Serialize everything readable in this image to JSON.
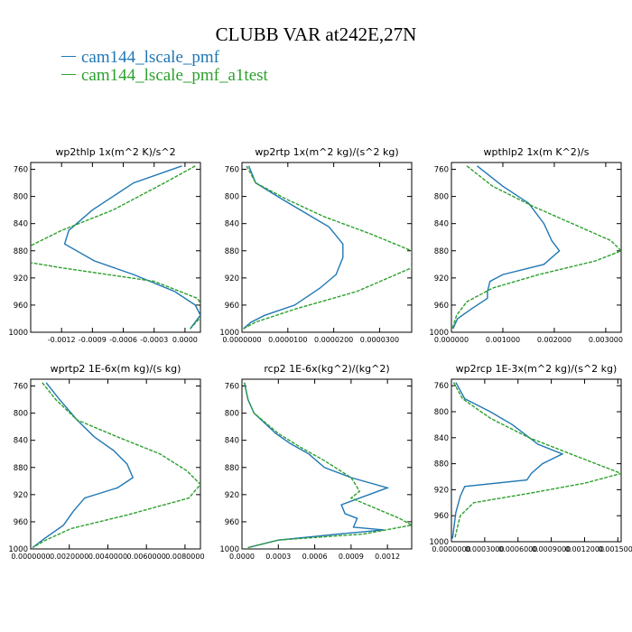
{
  "title": "CLUBB VAR at242E,27N",
  "legend": [
    {
      "label": "cam144_lscale_pmf",
      "color": "#1f77b4"
    },
    {
      "label": "cam144_lscale_pmf_a1test",
      "color": "#2ca02c"
    }
  ],
  "chart_data": [
    {
      "type": "line",
      "title": "wp2thlp  1x(m^2 K)/s^2",
      "xlim": [
        -0.0015,
        0.00015
      ],
      "ylim": [
        1000,
        750
      ],
      "xticks": [
        -0.0012,
        -0.0009,
        -0.0006,
        -0.0003,
        0.0
      ],
      "xticklabels": [
        "-0.0012",
        "-0.0009",
        "-0.0006",
        "-0.0003",
        "0.0000"
      ],
      "yticks": [
        760,
        800,
        840,
        880,
        920,
        960,
        1000
      ],
      "series": [
        {
          "color": "#1f77b4",
          "dashed": false,
          "x": [
            -3e-05,
            -0.0005,
            -0.0009,
            -0.00113,
            -0.00117,
            -0.00088,
            -0.0005,
            -0.0001,
            0.0001,
            0.00015,
            5e-05
          ],
          "y": [
            755,
            780,
            820,
            850,
            870,
            895,
            915,
            940,
            960,
            975,
            995
          ]
        },
        {
          "color": "#2ca02c",
          "dashed": true,
          "x": [
            0.0001,
            -0.0002,
            -0.0007,
            -0.0012,
            -0.0016,
            -0.0016,
            -0.0012,
            -0.0003,
            0.00012,
            0.0002,
            5e-05
          ],
          "y": [
            755,
            780,
            820,
            850,
            880,
            895,
            905,
            925,
            950,
            970,
            995
          ]
        }
      ]
    },
    {
      "type": "line",
      "title": "wp2rtp  1x(m^2 kg)/(s^2 kg)",
      "xlim": [
        0,
        3.7e-05
      ],
      "ylim": [
        1000,
        750
      ],
      "xticks": [
        0,
        1e-05,
        2e-05,
        3e-05
      ],
      "xticklabels": [
        "0.0000000",
        "0.0000100",
        "0.0000200",
        "0.0000300"
      ],
      "yticks": [
        760,
        800,
        840,
        880,
        920,
        960,
        1000
      ],
      "series": [
        {
          "color": "#1f77b4",
          "dashed": false,
          "x": [
            1.5e-06,
            3e-06,
            9e-06,
            1.4e-05,
            1.9e-05,
            2.2e-05,
            2.2e-05,
            2.05e-05,
            1.7e-05,
            1.15e-05,
            5e-06,
            2e-06,
            3e-07
          ],
          "y": [
            755,
            780,
            805,
            825,
            845,
            870,
            890,
            915,
            935,
            960,
            975,
            985,
            995
          ]
        },
        {
          "color": "#2ca02c",
          "dashed": true,
          "x": [
            1e-06,
            3e-06,
            1e-05,
            1.8e-05,
            2.8e-05,
            3.7e-05,
            3.7e-05,
            2.5e-05,
            1.2e-05,
            3e-06,
            3e-07
          ],
          "y": [
            755,
            780,
            805,
            830,
            855,
            880,
            905,
            940,
            965,
            985,
            995
          ]
        }
      ]
    },
    {
      "type": "line",
      "title": "wpthlp2  1x(m K^2)/s",
      "xlim": [
        0,
        0.0033
      ],
      "ylim": [
        1000,
        750
      ],
      "xticks": [
        0,
        0.001,
        0.002,
        0.003
      ],
      "xticklabels": [
        "0.000000",
        "0.001000",
        "0.002000",
        "0.003000"
      ],
      "yticks": [
        760,
        800,
        840,
        880,
        920,
        960,
        1000
      ],
      "series": [
        {
          "color": "#1f77b4",
          "dashed": false,
          "x": [
            0.0005,
            0.001,
            0.0015,
            0.0018,
            0.00195,
            0.0021,
            0.0018,
            0.001,
            0.00075,
            0.0007,
            0.0007,
            0.0004,
            0.00012,
            3e-05
          ],
          "y": [
            755,
            785,
            810,
            840,
            865,
            880,
            900,
            915,
            925,
            940,
            950,
            965,
            980,
            995
          ]
        },
        {
          "color": "#2ca02c",
          "dashed": true,
          "x": [
            0.0003,
            0.0008,
            0.0016,
            0.0025,
            0.0031,
            0.0033,
            0.0028,
            0.0017,
            0.0008,
            0.0003,
            0.0001,
            2e-05
          ],
          "y": [
            755,
            785,
            815,
            845,
            865,
            880,
            895,
            915,
            935,
            955,
            975,
            995
          ]
        }
      ]
    },
    {
      "type": "line",
      "title": "wprtp2  1E-6x(m kg)/(s kg)",
      "xlim": [
        0,
        0.0088
      ],
      "ylim": [
        1000,
        750
      ],
      "xticks": [
        0,
        0.002,
        0.004,
        0.006,
        0.008
      ],
      "xticklabels": [
        "0.0000000",
        "0.0020000",
        "0.0040000",
        "0.0060000",
        "0.0080000"
      ],
      "yticks": [
        760,
        800,
        840,
        880,
        920,
        960,
        1000
      ],
      "series": [
        {
          "color": "#1f77b4",
          "dashed": false,
          "x": [
            0.0008,
            0.0015,
            0.0024,
            0.0033,
            0.0043,
            0.005,
            0.0053,
            0.0045,
            0.0028,
            0.0022,
            0.0017,
            0.0007,
            0.0001
          ],
          "y": [
            755,
            780,
            810,
            835,
            855,
            875,
            895,
            910,
            925,
            945,
            965,
            985,
            998
          ]
        },
        {
          "color": "#2ca02c",
          "dashed": true,
          "x": [
            0.0006,
            0.0013,
            0.0024,
            0.0045,
            0.0067,
            0.0081,
            0.0088,
            0.0082,
            0.005,
            0.0021,
            0.0007,
            0.0001
          ],
          "y": [
            755,
            780,
            810,
            835,
            860,
            885,
            905,
            925,
            950,
            970,
            988,
            998
          ]
        }
      ]
    },
    {
      "type": "line",
      "title": "rcp2  1E-6x(kg^2)/(kg^2)",
      "xlim": [
        0,
        0.0014
      ],
      "ylim": [
        1000,
        750
      ],
      "xticks": [
        0,
        0.0003,
        0.0006,
        0.0009,
        0.0012
      ],
      "xticklabels": [
        "0.0000",
        "0.0003",
        "0.0006",
        "0.0009",
        "0.0012"
      ],
      "yticks": [
        760,
        800,
        840,
        880,
        920,
        960,
        1000
      ],
      "series": [
        {
          "color": "#1f77b4",
          "dashed": false,
          "x": [
            2e-05,
            5e-05,
            0.0001,
            0.00028,
            0.0004,
            0.00055,
            0.00068,
            0.0009,
            0.0012,
            0.00082,
            0.00085,
            0.00095,
            0.00092,
            0.00117,
            0.0008,
            0.0003,
            5e-05
          ],
          "y": [
            755,
            780,
            800,
            830,
            845,
            860,
            880,
            895,
            910,
            935,
            948,
            955,
            968,
            972,
            978,
            987,
            998
          ]
        },
        {
          "color": "#2ca02c",
          "dashed": true,
          "x": [
            2e-05,
            5e-05,
            0.0001,
            0.0003,
            0.00048,
            0.00068,
            0.0009,
            0.00097,
            0.0009,
            0.0011,
            0.0013,
            0.0014,
            0.001,
            0.0003,
            5e-05
          ],
          "y": [
            755,
            780,
            800,
            830,
            850,
            870,
            895,
            915,
            925,
            940,
            955,
            965,
            978,
            987,
            998
          ]
        }
      ]
    },
    {
      "type": "line",
      "title": "wp2rcp  1E-3x(m^2 kg)/(s^2 kg)",
      "xlim": [
        0,
        0.00153
      ],
      "ylim": [
        1000,
        750
      ],
      "xticks": [
        0,
        0.0003,
        0.0006,
        0.0009,
        0.0012,
        0.0015
      ],
      "xticklabels": [
        "0.0000000",
        "0.0003000",
        "0.0006000",
        "0.0009000",
        "0.0012000",
        "0.0015000"
      ],
      "yticks": [
        760,
        800,
        840,
        880,
        920,
        960,
        1000
      ],
      "series": [
        {
          "color": "#1f77b4",
          "dashed": false,
          "x": [
            4e-05,
            0.00012,
            0.00035,
            0.00055,
            0.00078,
            0.001,
            0.00082,
            0.00072,
            0.00068,
            0.00012,
            8e-05,
            4e-05,
            1e-05
          ],
          "y": [
            755,
            780,
            800,
            820,
            850,
            865,
            880,
            895,
            905,
            915,
            930,
            955,
            995
          ]
        },
        {
          "color": "#2ca02c",
          "dashed": true,
          "x": [
            2e-05,
            0.0001,
            0.00035,
            0.0007,
            0.00115,
            0.00153,
            0.0012,
            0.00072,
            0.0002,
            8e-05,
            3e-05
          ],
          "y": [
            755,
            780,
            810,
            840,
            870,
            895,
            910,
            925,
            940,
            960,
            995
          ]
        }
      ]
    }
  ]
}
